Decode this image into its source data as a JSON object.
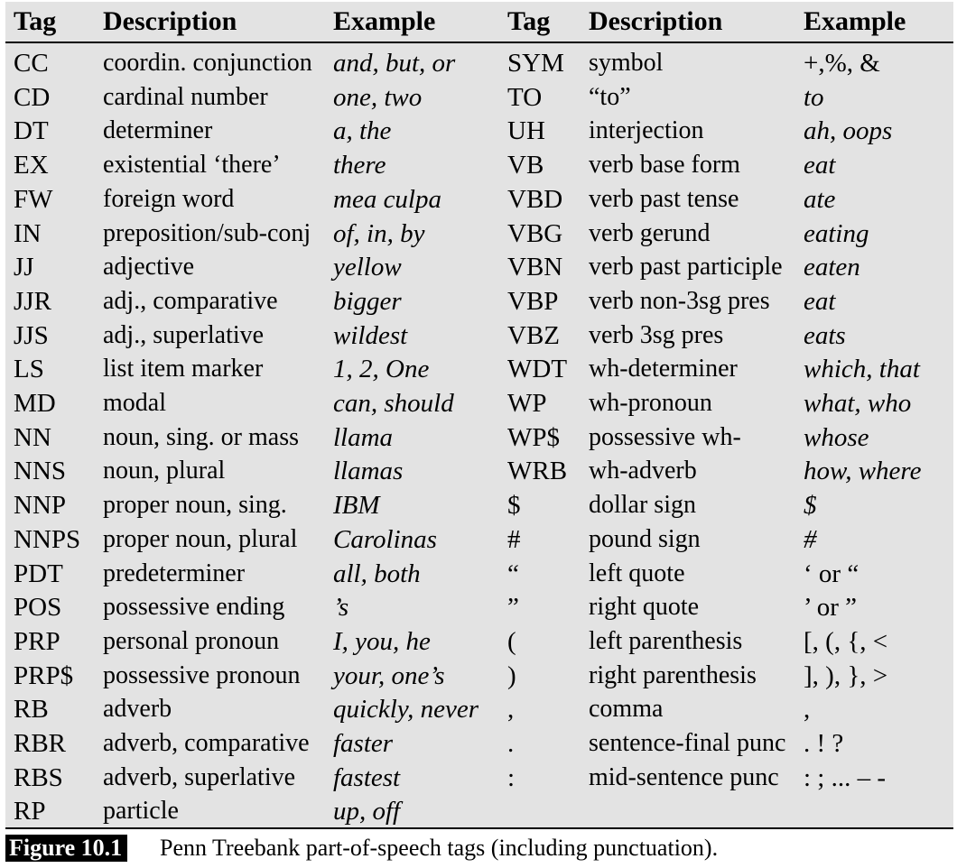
{
  "header": {
    "tag1": "Tag",
    "desc1": "Description",
    "example1": "Example",
    "tag2": "Tag",
    "desc2": "Description",
    "example2": "Example"
  },
  "rows": [
    {
      "tag1": "CC",
      "desc1": "coordin. conjunction",
      "ex1": "and, but, or",
      "tag2": "SYM",
      "desc2": "symbol",
      "ex2": "+,%, &"
    },
    {
      "tag1": "CD",
      "desc1": "cardinal number",
      "ex1": "one, two",
      "tag2": "TO",
      "desc2": "“to”",
      "ex2": "to"
    },
    {
      "tag1": "DT",
      "desc1": "determiner",
      "ex1": "a, the",
      "tag2": "UH",
      "desc2": "interjection",
      "ex2": "ah, oops"
    },
    {
      "tag1": "EX",
      "desc1": "existential ‘there’",
      "ex1": "there",
      "tag2": "VB",
      "desc2": "verb base form",
      "ex2": "eat"
    },
    {
      "tag1": "FW",
      "desc1": "foreign word",
      "ex1": "mea culpa",
      "tag2": "VBD",
      "desc2": "verb past tense",
      "ex2": "ate"
    },
    {
      "tag1": "IN",
      "desc1": "preposition/sub-conj",
      "ex1": "of, in, by",
      "tag2": "VBG",
      "desc2": "verb gerund",
      "ex2": "eating"
    },
    {
      "tag1": "JJ",
      "desc1": "adjective",
      "ex1": "yellow",
      "tag2": "VBN",
      "desc2": "verb past participle",
      "ex2": "eaten"
    },
    {
      "tag1": "JJR",
      "desc1": "adj., comparative",
      "ex1": "bigger",
      "tag2": "VBP",
      "desc2": "verb non-3sg pres",
      "ex2": "eat"
    },
    {
      "tag1": "JJS",
      "desc1": "adj., superlative",
      "ex1": "wildest",
      "tag2": "VBZ",
      "desc2": "verb 3sg pres",
      "ex2": "eats"
    },
    {
      "tag1": "LS",
      "desc1": "list item marker",
      "ex1": "1, 2, One",
      "tag2": "WDT",
      "desc2": "wh-determiner",
      "ex2": "which, that"
    },
    {
      "tag1": "MD",
      "desc1": "modal",
      "ex1": "can, should",
      "tag2": "WP",
      "desc2": "wh-pronoun",
      "ex2": "what, who"
    },
    {
      "tag1": "NN",
      "desc1": "noun, sing. or mass",
      "ex1": "llama",
      "tag2": "WP$",
      "desc2": "possessive wh-",
      "ex2": "whose"
    },
    {
      "tag1": "NNS",
      "desc1": "noun, plural",
      "ex1": "llamas",
      "tag2": "WRB",
      "desc2": "wh-adverb",
      "ex2": "how, where"
    },
    {
      "tag1": "NNP",
      "desc1": "proper noun, sing.",
      "ex1": "IBM",
      "tag2": "$",
      "desc2": "dollar sign",
      "ex2": "$"
    },
    {
      "tag1": "NNPS",
      "desc1": "proper noun, plural",
      "ex1": "Carolinas",
      "tag2": "#",
      "desc2": "pound sign",
      "ex2": "#"
    },
    {
      "tag1": "PDT",
      "desc1": "predeterminer",
      "ex1": "all, both",
      "tag2": "“",
      "desc2": "left quote",
      "ex2": "‘ or “"
    },
    {
      "tag1": "POS",
      "desc1": "possessive ending",
      "ex1": "’s",
      "tag2": "”",
      "desc2": "right quote",
      "ex2": "’ or ”"
    },
    {
      "tag1": "PRP",
      "desc1": "personal pronoun",
      "ex1": "I, you, he",
      "tag2": "(",
      "desc2": "left parenthesis",
      "ex2": "[, (, {, <"
    },
    {
      "tag1": "PRP$",
      "desc1": "possessive pronoun",
      "ex1": "your, one’s",
      "tag2": ")",
      "desc2": "right parenthesis",
      "ex2": "], ), }, >"
    },
    {
      "tag1": "RB",
      "desc1": "adverb",
      "ex1": "quickly, never",
      "tag2": ",",
      "desc2": "comma",
      "ex2": ","
    },
    {
      "tag1": "RBR",
      "desc1": "adverb, comparative",
      "ex1": "faster",
      "tag2": ".",
      "desc2": "sentence-final punc",
      "ex2": ". ! ?"
    },
    {
      "tag1": "RBS",
      "desc1": "adverb, superlative",
      "ex1": "fastest",
      "tag2": ":",
      "desc2": "mid-sentence punc",
      "ex2": ": ; ... – -"
    },
    {
      "tag1": "RP",
      "desc1": "particle",
      "ex1": "up, off",
      "tag2": "",
      "desc2": "",
      "ex2": ""
    }
  ],
  "caption": {
    "label": "Figure 10.1",
    "text": "Penn Treebank part-of-speech tags (including punctuation)."
  }
}
